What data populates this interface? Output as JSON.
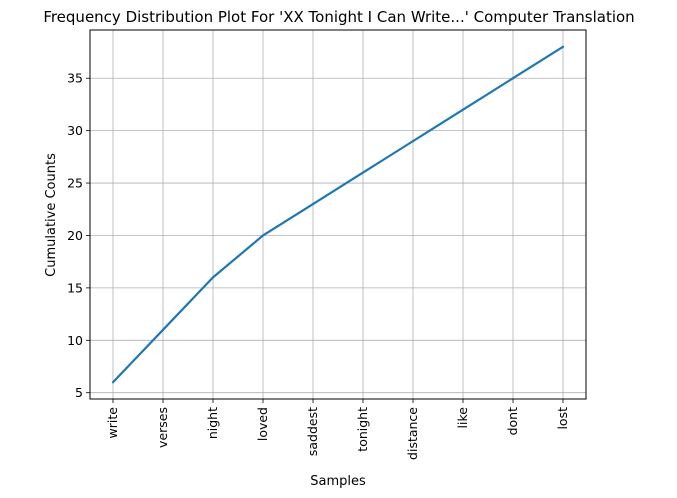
{
  "chart_data": {
    "type": "line",
    "title": "Frequency Distribution Plot For 'XX Tonight I Can Write...' Computer Translation",
    "xlabel": "Samples",
    "ylabel": "Cumulative Counts",
    "categories": [
      "write",
      "verses",
      "night",
      "loved",
      "saddest",
      "tonight",
      "distance",
      "like",
      "dont",
      "lost"
    ],
    "values": [
      6,
      11,
      16,
      20,
      23,
      26,
      29,
      32,
      35,
      38
    ],
    "yticks": [
      5,
      10,
      15,
      20,
      25,
      30,
      35
    ],
    "ylim": [
      4.4,
      39.6
    ],
    "grid": true,
    "line_color": "#1f77b4"
  }
}
